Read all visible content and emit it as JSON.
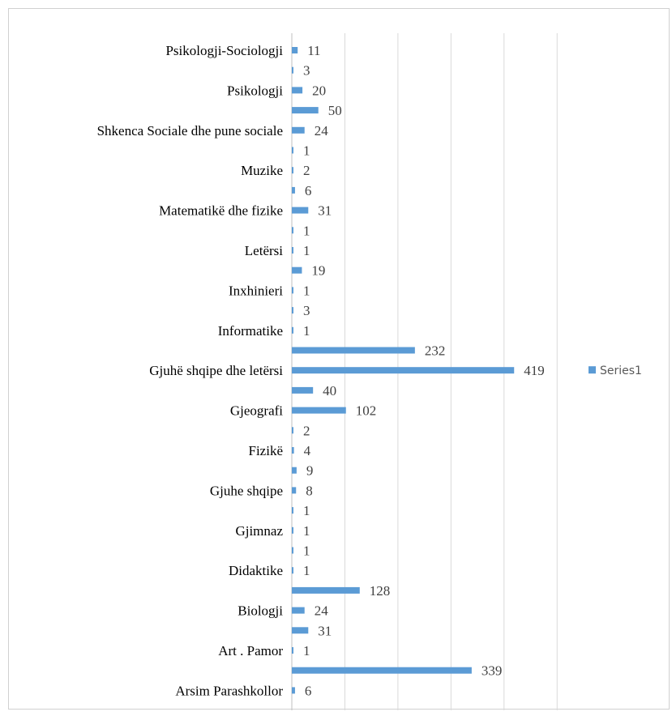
{
  "chart_data": {
    "type": "bar",
    "orientation": "horizontal",
    "categories": [
      "Psikologji-Sociologji",
      "",
      "Psikologji",
      "",
      "Shkenca Sociale dhe pune sociale",
      "",
      "Muzike",
      "",
      "Matematikë dhe fizike",
      "",
      "Letërsi",
      "",
      "Inxhinieri",
      "",
      "Informatike",
      "",
      "Gjuhë shqipe dhe letërsi",
      "",
      "Gjeografi",
      "",
      "Fizikë",
      "",
      "Gjuhe shqipe",
      "",
      "Gjimnaz",
      "",
      "Didaktike",
      "",
      "Biologji",
      "",
      "Art . Pamor",
      "",
      "Arsim Parashkollor"
    ],
    "series": [
      {
        "name": "Series1",
        "color": "#5b9bd5",
        "values": [
          11,
          3,
          20,
          50,
          24,
          1,
          2,
          6,
          31,
          1,
          1,
          19,
          1,
          3,
          1,
          232,
          419,
          40,
          102,
          2,
          4,
          9,
          8,
          1,
          1,
          1,
          1,
          128,
          24,
          31,
          1,
          339,
          6
        ]
      }
    ],
    "xlim": [
      0,
      500
    ],
    "x_gridlines": true,
    "x_tick_labels_visible": false,
    "data_labels": true,
    "legend": {
      "position": "right",
      "entries": [
        "Series1"
      ]
    }
  },
  "colors": {
    "bar": "#5b9bd5",
    "grid": "#d9d9d9",
    "frame": "#d0d0d0"
  }
}
